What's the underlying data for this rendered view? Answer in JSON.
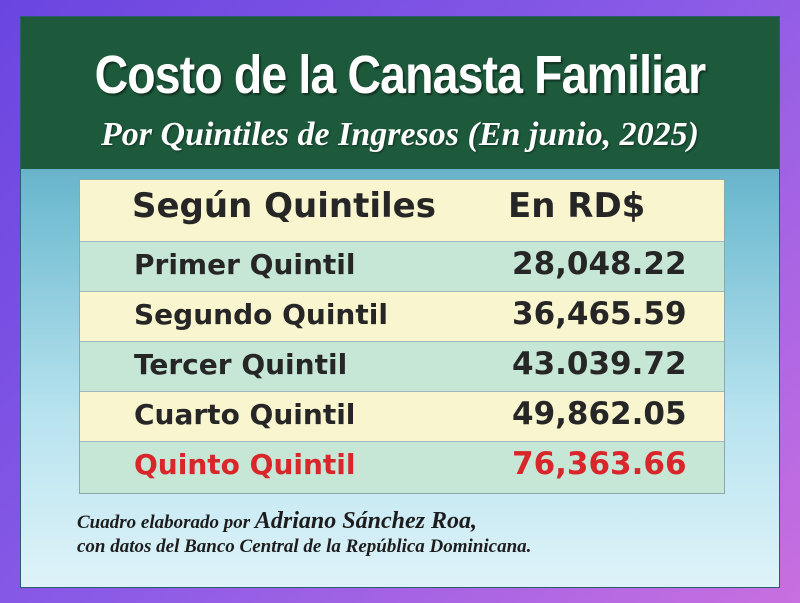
{
  "title": "Costo de la Canasta Familiar",
  "subtitle": "Por Quintiles de Ingresos (En junio, 2025)",
  "table": {
    "headers": [
      "Según Quintiles",
      "En RD$"
    ],
    "rows": [
      {
        "label": "Primer Quintil",
        "value": "28,048.22"
      },
      {
        "label": "Segundo Quintil",
        "value": "36,465.59"
      },
      {
        "label": "Tercer Quintil",
        "value": "43.039.72"
      },
      {
        "label": "Cuarto Quintil",
        "value": "49,862.05"
      },
      {
        "label": "Quinto Quintil",
        "value": "76,363.66"
      }
    ]
  },
  "footnote": {
    "prefix": "Cuadro elaborado por ",
    "author": "Adriano Sánchez Roa,",
    "line2": "con datos del Banco Central de la República Dominicana."
  },
  "colors": {
    "header_bg": "#1d5a3c",
    "row_cream": "#f8f5cf",
    "row_mint": "#c6e6d6",
    "highlight": "#d8262a"
  }
}
